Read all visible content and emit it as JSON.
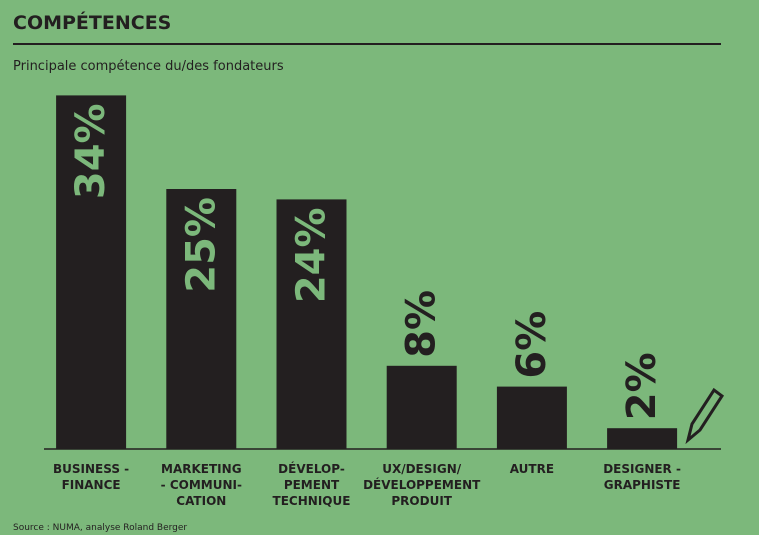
{
  "chart_data": {
    "type": "bar",
    "title": "COMPÉTENCES",
    "subtitle": "Principale compétence du/des fondateurs",
    "source": "Source : NUMA, analyse Roland Berger",
    "categories": [
      "BUSINESS -\nFINANCE",
      "MARKETING\n- COMMUNI-\nCATION",
      "DÉVELOP-\nPEMENT\nTECHNIQUE",
      "UX/DESIGN/\nDÉVELOPPEMENT\nPRODUIT",
      "AUTRE",
      "DESIGNER -\nGRAPHISTE"
    ],
    "values": [
      34,
      25,
      24,
      8,
      6,
      2
    ],
    "value_labels": [
      "34%",
      "25%",
      "24%",
      "8%",
      "6%",
      "2%"
    ],
    "color": "#231f20"
  }
}
